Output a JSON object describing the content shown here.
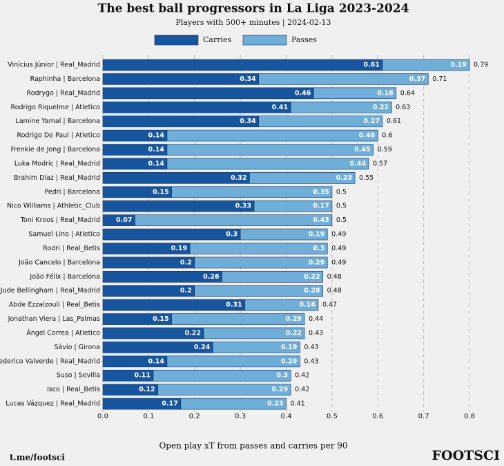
{
  "chart_data": {
    "type": "stacked-barh",
    "title": "The best ball progressors in La Liga 2023-2024",
    "subtitle": "Players with 500+ minutes | 2024-02-13",
    "x_label": "Open play xT from passes and carries per 90",
    "source": "t.me/footsci",
    "brand": "FOOTSCI",
    "categories": [
      "Vinícius Júnior | Real_Madrid",
      "Raphinha | Barcelona",
      "Rodrygo | Real_Madrid",
      "Rodrigo Riquelme | Atletico",
      "Lamine Yamal | Barcelona",
      "Rodrigo De Paul | Atletico",
      "Frenkie de Jong | Barcelona",
      "Luka Modric | Real_Madrid",
      "Brahim Díaz | Real_Madrid",
      "Pedri | Barcelona",
      "Nico Williams | Athletic_Club",
      "Toni Kroos | Real_Madrid",
      "Samuel Lino | Atletico",
      "Rodri | Real_Betis",
      "João Cancelo | Barcelona",
      "João Félix | Barcelona",
      "Jude Bellingham | Real_Madrid",
      "Abde Ezzalzouli | Real_Betis",
      "Jonathan Viera | Las_Palmas",
      "Ángel Correa | Atletico",
      "Sávio | Girona",
      "Federico Valverde | Real_Madrid",
      "Suso | Sevilla",
      "Isco | Real_Betis",
      "Lucas Vázquez | Real_Madrid"
    ],
    "series": [
      {
        "name": "Carries",
        "color": "#17569f",
        "values": [
          0.61,
          0.34,
          0.46,
          0.41,
          0.34,
          0.14,
          0.14,
          0.14,
          0.32,
          0.15,
          0.33,
          0.07,
          0.3,
          0.19,
          0.2,
          0.26,
          0.2,
          0.31,
          0.15,
          0.22,
          0.24,
          0.14,
          0.11,
          0.12,
          0.17
        ]
      },
      {
        "name": "Passes",
        "color": "#6eaed8",
        "values": [
          0.19,
          0.37,
          0.18,
          0.22,
          0.27,
          0.46,
          0.45,
          0.44,
          0.23,
          0.35,
          0.17,
          0.43,
          0.19,
          0.3,
          0.29,
          0.22,
          0.28,
          0.16,
          0.29,
          0.22,
          0.19,
          0.29,
          0.3,
          0.29,
          0.23
        ]
      }
    ],
    "totals": [
      0.79,
      0.71,
      0.64,
      0.63,
      0.61,
      0.6,
      0.59,
      0.57,
      0.55,
      0.5,
      0.5,
      0.5,
      0.49,
      0.49,
      0.49,
      0.48,
      0.48,
      0.47,
      0.44,
      0.43,
      0.43,
      0.43,
      0.42,
      0.42,
      0.41
    ],
    "xlim": [
      0,
      0.8
    ],
    "xticks": [
      {
        "value": 0,
        "label": "0.0"
      },
      0.1,
      0.2,
      0.3,
      0.4,
      0.5,
      0.6,
      0.7,
      0.8
    ],
    "grid": true
  }
}
